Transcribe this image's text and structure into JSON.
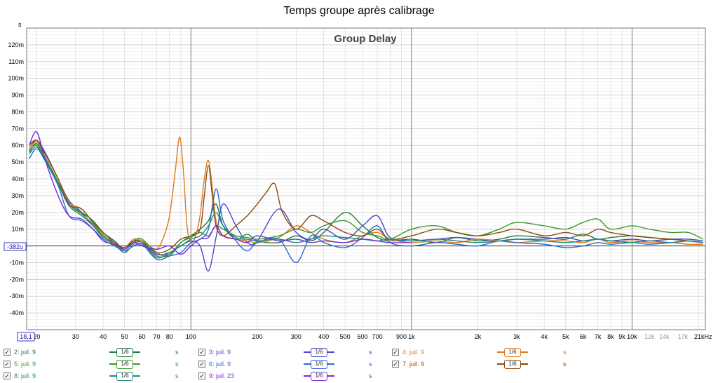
{
  "chart_data": {
    "type": "line",
    "title": "Temps groupe après calibrage",
    "subtitle": "Group Delay",
    "ylabel": "s",
    "xscale": "log",
    "xlim": [
      18,
      21500
    ],
    "ylim": [
      -0.05,
      0.13
    ],
    "grid": true,
    "y_ticks": [
      {
        "v": 0.12,
        "label": "120m"
      },
      {
        "v": 0.11,
        "label": "110m"
      },
      {
        "v": 0.1,
        "label": "100m"
      },
      {
        "v": 0.09,
        "label": "90m"
      },
      {
        "v": 0.08,
        "label": "80m"
      },
      {
        "v": 0.07,
        "label": "70m"
      },
      {
        "v": 0.06,
        "label": "60m"
      },
      {
        "v": 0.05,
        "label": "50m"
      },
      {
        "v": 0.04,
        "label": "40m"
      },
      {
        "v": 0.03,
        "label": "30m"
      },
      {
        "v": 0.02,
        "label": "20m"
      },
      {
        "v": 0.01,
        "label": "10m"
      },
      {
        "v": -0.01,
        "label": "-10m"
      },
      {
        "v": -0.02,
        "label": "-20m"
      },
      {
        "v": -0.03,
        "label": "-30m"
      },
      {
        "v": -0.04,
        "label": "-40m"
      }
    ],
    "cursor_y_label": "-382u",
    "cursor_x_label": "18,1",
    "x_ticks": [
      {
        "v": 20,
        "label": "20"
      },
      {
        "v": 30,
        "label": "30"
      },
      {
        "v": 40,
        "label": "40"
      },
      {
        "v": 50,
        "label": "50"
      },
      {
        "v": 60,
        "label": "60"
      },
      {
        "v": 70,
        "label": "70"
      },
      {
        "v": 80,
        "label": "80"
      },
      {
        "v": 100,
        "label": "100"
      },
      {
        "v": 200,
        "label": "200"
      },
      {
        "v": 300,
        "label": "300"
      },
      {
        "v": 400,
        "label": "400"
      },
      {
        "v": 500,
        "label": "500"
      },
      {
        "v": 600,
        "label": "600"
      },
      {
        "v": 700,
        "label": "700"
      },
      {
        "v": 900,
        "label": "900"
      },
      {
        "v": 1000,
        "label": "1k"
      },
      {
        "v": 2000,
        "label": "2k"
      },
      {
        "v": 3000,
        "label": "3k"
      },
      {
        "v": 4000,
        "label": "4k"
      },
      {
        "v": 5000,
        "label": "5k"
      },
      {
        "v": 6000,
        "label": "6k"
      },
      {
        "v": 7000,
        "label": "7k"
      },
      {
        "v": 8000,
        "label": "8k"
      },
      {
        "v": 9000,
        "label": "9k"
      },
      {
        "v": 10000,
        "label": "10k"
      },
      {
        "v": 12000,
        "label": "12k"
      },
      {
        "v": 14000,
        "label": "14k"
      },
      {
        "v": 17000,
        "label": "17k"
      },
      {
        "v": 21000,
        "label": "21kHz"
      }
    ],
    "series": [
      {
        "name": "2: juil. 9",
        "color": "#1e7a3c",
        "x": [
          18.5,
          20,
          22,
          25,
          28,
          32,
          36,
          40,
          45,
          50,
          55,
          60,
          70,
          80,
          90,
          100,
          110,
          120,
          130,
          140,
          160,
          180,
          200,
          250,
          300,
          350,
          400,
          500,
          600,
          700,
          800,
          1000,
          1300,
          1600,
          2000,
          2500,
          3000,
          4000,
          5000,
          6000,
          7000,
          8000,
          10000,
          12000,
          15000,
          18000,
          21000
        ],
        "y": [
          0.056,
          0.061,
          0.052,
          0.038,
          0.025,
          0.02,
          0.015,
          0.008,
          0.003,
          -0.002,
          0.002,
          0.003,
          -0.006,
          -0.005,
          0.002,
          0.006,
          0.01,
          0.015,
          0.025,
          0.012,
          0.004,
          0.007,
          0.003,
          0.002,
          0.006,
          0.003,
          0.008,
          0.02,
          0.012,
          0.005,
          0.003,
          0.004,
          0.002,
          0.005,
          0.003,
          0.004,
          0.006,
          0.005,
          0.004,
          0.007,
          0.004,
          0.005,
          0.006,
          0.005,
          0.004,
          0.003,
          0.002
        ]
      },
      {
        "name": "3: juil. 9",
        "color": "#4848c8",
        "x": [
          18.5,
          20,
          22,
          25,
          28,
          32,
          36,
          40,
          45,
          50,
          55,
          60,
          70,
          80,
          90,
          100,
          110,
          120,
          130,
          140,
          160,
          180,
          200,
          250,
          300,
          350,
          400,
          500,
          600,
          700,
          800,
          1000,
          1300,
          1600,
          2000,
          2500,
          3000,
          4000,
          5000,
          6000,
          7000,
          8000,
          10000,
          12000,
          15000,
          18000,
          21000
        ],
        "y": [
          0.058,
          0.063,
          0.055,
          0.04,
          0.027,
          0.02,
          0.012,
          0.006,
          0.001,
          -0.003,
          0.0,
          0.001,
          -0.005,
          -0.004,
          0.0,
          0.003,
          0.0,
          -0.015,
          0.005,
          0.025,
          0.012,
          0.002,
          0.003,
          0.022,
          0.008,
          0.004,
          0.01,
          0.004,
          0.012,
          0.018,
          0.005,
          0.003,
          0.004,
          0.005,
          0.004,
          0.003,
          0.004,
          0.004,
          0.005,
          0.003,
          0.004,
          0.003,
          0.004,
          0.003,
          0.004,
          0.004,
          0.003
        ]
      },
      {
        "name": "4: juil. 9",
        "color": "#e07a1a",
        "x": [
          18.5,
          20,
          22,
          25,
          28,
          32,
          36,
          40,
          45,
          50,
          55,
          60,
          65,
          70,
          75,
          80,
          85,
          88,
          90,
          93,
          96,
          100,
          105,
          110,
          115,
          120,
          125,
          130,
          140,
          160,
          180,
          200,
          250,
          300,
          350,
          400,
          500,
          600,
          700,
          800,
          1000,
          1300,
          1600,
          2000,
          2500,
          3000,
          4000,
          5000,
          6000,
          7000,
          8000,
          10000,
          12000,
          15000,
          18000,
          21000
        ],
        "y": [
          0.058,
          0.062,
          0.054,
          0.04,
          0.026,
          0.022,
          0.014,
          0.007,
          0.0,
          -0.001,
          0.004,
          0.003,
          0.0,
          -0.002,
          0.005,
          0.018,
          0.045,
          0.063,
          0.062,
          0.04,
          0.012,
          0.002,
          0.006,
          0.018,
          0.04,
          0.051,
          0.035,
          0.015,
          0.006,
          0.004,
          0.003,
          0.002,
          0.005,
          0.012,
          0.008,
          0.004,
          0.002,
          0.006,
          0.008,
          0.004,
          0.002,
          0.003,
          0.002,
          0.004,
          0.003,
          0.002,
          0.003,
          0.003,
          0.002,
          0.004,
          0.002,
          0.003,
          0.002,
          0.002,
          0.001,
          0.001
        ]
      },
      {
        "name": "5: juil. 9",
        "color": "#3a9a2a",
        "x": [
          18.5,
          20,
          22,
          25,
          28,
          32,
          36,
          40,
          45,
          50,
          55,
          60,
          70,
          80,
          90,
          100,
          110,
          120,
          130,
          140,
          160,
          180,
          200,
          250,
          300,
          350,
          400,
          500,
          600,
          700,
          800,
          1000,
          1300,
          1600,
          2000,
          2500,
          3000,
          4000,
          5000,
          6000,
          7000,
          8000,
          10000,
          12000,
          15000,
          18000,
          21000
        ],
        "y": [
          0.057,
          0.06,
          0.052,
          0.038,
          0.025,
          0.019,
          0.013,
          0.006,
          0.002,
          -0.002,
          0.003,
          0.004,
          -0.004,
          -0.006,
          0.002,
          0.005,
          0.008,
          0.006,
          0.012,
          0.01,
          0.006,
          0.005,
          0.004,
          0.006,
          0.01,
          0.008,
          0.012,
          0.015,
          0.008,
          0.006,
          0.004,
          0.01,
          0.012,
          0.008,
          0.006,
          0.01,
          0.014,
          0.012,
          0.01,
          0.014,
          0.016,
          0.01,
          0.012,
          0.01,
          0.008,
          0.008,
          0.004
        ]
      },
      {
        "name": "6: juil. 9",
        "color": "#2a6ad0",
        "x": [
          18.5,
          20,
          22,
          25,
          28,
          32,
          36,
          40,
          45,
          50,
          55,
          60,
          70,
          80,
          90,
          100,
          110,
          120,
          130,
          140,
          160,
          180,
          200,
          250,
          300,
          350,
          400,
          500,
          600,
          700,
          800,
          1000,
          1300,
          1600,
          2000,
          2500,
          3000,
          4000,
          5000,
          6000,
          7000,
          8000,
          10000,
          12000,
          15000,
          18000,
          21000
        ],
        "y": [
          0.052,
          0.058,
          0.05,
          0.036,
          0.018,
          0.015,
          0.01,
          0.004,
          0.0,
          -0.003,
          0.0,
          0.001,
          -0.008,
          -0.006,
          -0.004,
          0.002,
          0.004,
          0.01,
          0.034,
          0.015,
          0.003,
          -0.003,
          0.002,
          0.004,
          -0.01,
          0.006,
          0.002,
          -0.001,
          0.005,
          0.012,
          0.002,
          0.0,
          0.002,
          0.001,
          0.0,
          0.003,
          0.002,
          0.001,
          -0.001,
          0.0,
          0.002,
          0.001,
          0.002,
          0.001,
          0.002,
          0.003,
          0.002
        ]
      },
      {
        "name": "7: juil. 9",
        "color": "#8a4a10",
        "x": [
          18.5,
          20,
          22,
          25,
          28,
          32,
          36,
          40,
          45,
          50,
          55,
          60,
          70,
          80,
          90,
          100,
          110,
          115,
          120,
          125,
          130,
          140,
          160,
          180,
          200,
          220,
          240,
          260,
          300,
          350,
          400,
          500,
          600,
          700,
          800,
          1000,
          1300,
          1600,
          2000,
          2500,
          3000,
          4000,
          5000,
          6000,
          7000,
          8000,
          10000,
          12000,
          15000,
          18000,
          21000
        ],
        "y": [
          0.06,
          0.063,
          0.054,
          0.04,
          0.025,
          0.022,
          0.014,
          0.008,
          0.002,
          -0.001,
          0.003,
          0.002,
          -0.004,
          -0.002,
          0.004,
          0.006,
          0.01,
          0.03,
          0.048,
          0.03,
          0.012,
          0.006,
          0.012,
          0.018,
          0.025,
          0.032,
          0.037,
          0.02,
          0.01,
          0.018,
          0.015,
          0.008,
          0.006,
          0.01,
          0.004,
          0.006,
          0.01,
          0.008,
          0.006,
          0.008,
          0.01,
          0.006,
          0.008,
          0.006,
          0.01,
          0.008,
          0.006,
          0.005,
          0.004,
          0.003,
          0.002
        ]
      },
      {
        "name": "8: juil. 9",
        "color": "#1a8a8a",
        "x": [
          18.5,
          20,
          22,
          25,
          28,
          32,
          36,
          40,
          45,
          50,
          55,
          60,
          70,
          80,
          90,
          100,
          110,
          120,
          130,
          140,
          160,
          180,
          200,
          250,
          300,
          350,
          400,
          500,
          600,
          700,
          800,
          1000,
          1300,
          1600,
          2000,
          2500,
          3000,
          4000,
          5000,
          6000,
          7000,
          8000,
          10000,
          12000,
          15000,
          18000,
          21000
        ],
        "y": [
          0.055,
          0.059,
          0.051,
          0.037,
          0.024,
          0.018,
          0.012,
          0.005,
          0.001,
          -0.004,
          0.001,
          0.002,
          -0.007,
          -0.004,
          0.0,
          0.004,
          0.006,
          0.012,
          0.02,
          0.012,
          0.005,
          0.004,
          0.003,
          0.004,
          0.002,
          0.004,
          0.006,
          0.005,
          0.004,
          0.003,
          0.004,
          0.003,
          0.004,
          0.003,
          0.002,
          0.003,
          0.004,
          0.003,
          0.002,
          0.003,
          0.004,
          0.003,
          0.002,
          0.003,
          0.002,
          0.003,
          0.002
        ]
      },
      {
        "name": "9: juil. 23",
        "color": "#7a2ad8",
        "x": [
          18.5,
          20,
          22,
          25,
          28,
          32,
          36,
          40,
          45,
          50,
          55,
          60,
          70,
          80,
          90,
          100,
          110,
          120,
          130,
          140,
          160,
          180,
          200,
          250,
          300,
          350,
          400,
          500,
          600,
          700,
          800,
          1000
        ],
        "y": [
          0.06,
          0.068,
          0.05,
          0.03,
          0.018,
          0.016,
          0.01,
          0.003,
          0.001,
          -0.002,
          0.002,
          0.0,
          -0.002,
          0.0,
          -0.005,
          0.0,
          0.004,
          0.005,
          0.012,
          0.006,
          0.004,
          0.002,
          0.006,
          0.003,
          0.004,
          0.002,
          0.003,
          0.002,
          0.004,
          0.003,
          0.002,
          0.002
        ]
      }
    ]
  },
  "legend": {
    "unit": "s",
    "smoothing": "1/6",
    "items": [
      {
        "label": "2: juil. 9",
        "checked": "✓",
        "color": "#1e7a3c"
      },
      {
        "label": "3: juil. 9",
        "checked": "✓",
        "color": "#4848c8"
      },
      {
        "label": "4: juil. 9",
        "checked": "✓",
        "color": "#e07a1a"
      },
      {
        "label": "5: juil. 9",
        "checked": "✓",
        "color": "#3a9a2a"
      },
      {
        "label": "6: juil. 9",
        "checked": "✓",
        "color": "#2a6ad0"
      },
      {
        "label": "7: juil. 9",
        "checked": "✓",
        "color": "#8a4a10"
      },
      {
        "label": "8: juil. 9",
        "checked": "✓",
        "color": "#1a8a8a"
      },
      {
        "label": "9: juil. 23",
        "checked": "✓",
        "color": "#7a2ad8"
      }
    ]
  }
}
